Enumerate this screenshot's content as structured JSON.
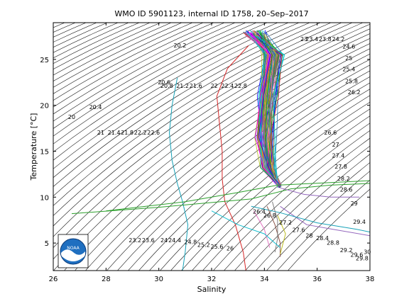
{
  "chart_data": {
    "type": "line",
    "title": "WMO ID 5901123, internal ID 1758, 20–Sep–2017",
    "xlabel": "Salinity",
    "ylabel": "Temperature [°C]",
    "xlim": [
      26,
      38
    ],
    "ylim": [
      2,
      29
    ],
    "xticks": [
      "26",
      "28",
      "30",
      "32",
      "34",
      "36",
      "38"
    ],
    "yticks": [
      "5",
      "10",
      "15",
      "20",
      "25"
    ],
    "grid": false,
    "isopycnal_labels": [
      {
        "text": "20",
        "s": 26.7,
        "t": 18.5
      },
      {
        "text": "20.4",
        "s": 27.6,
        "t": 19.6
      },
      {
        "text": "21",
        "s": 27.8,
        "t": 16.8
      },
      {
        "text": "21.4",
        "s": 28.3,
        "t": 16.8
      },
      {
        "text": "21.8",
        "s": 28.8,
        "t": 16.8
      },
      {
        "text": "22.2",
        "s": 29.3,
        "t": 16.8
      },
      {
        "text": "22.6",
        "s": 29.8,
        "t": 16.8
      },
      {
        "text": "20.6",
        "s": 30.2,
        "t": 22.3
      },
      {
        "text": "20.8",
        "s": 30.3,
        "t": 21.9
      },
      {
        "text": "21.2",
        "s": 30.9,
        "t": 21.9
      },
      {
        "text": "21.6",
        "s": 31.4,
        "t": 21.9
      },
      {
        "text": "22",
        "s": 32.1,
        "t": 21.9
      },
      {
        "text": "22.4",
        "s": 32.6,
        "t": 21.9
      },
      {
        "text": "22.8",
        "s": 33.1,
        "t": 21.9
      },
      {
        "text": "20.2",
        "s": 30.8,
        "t": 26.3
      },
      {
        "text": "23.2",
        "s": 29.1,
        "t": 5.1
      },
      {
        "text": "23.6",
        "s": 29.6,
        "t": 5.1
      },
      {
        "text": "24",
        "s": 30.2,
        "t": 5.1
      },
      {
        "text": "24.4",
        "s": 30.6,
        "t": 5.1
      },
      {
        "text": "24.8",
        "s": 31.2,
        "t": 4.9
      },
      {
        "text": "25.2",
        "s": 31.7,
        "t": 4.6
      },
      {
        "text": "25.6",
        "s": 32.2,
        "t": 4.4
      },
      {
        "text": "26",
        "s": 32.7,
        "t": 4.2
      },
      {
        "text": "26.4",
        "s": 33.8,
        "t": 8.2
      },
      {
        "text": "26.8",
        "s": 34.2,
        "t": 7.8
      },
      {
        "text": "27.2",
        "s": 34.8,
        "t": 7.0
      },
      {
        "text": "27.6",
        "s": 35.3,
        "t": 6.2
      },
      {
        "text": "28",
        "s": 35.7,
        "t": 5.6
      },
      {
        "text": "28.4",
        "s": 36.2,
        "t": 5.3
      },
      {
        "text": "28.8",
        "s": 36.6,
        "t": 4.8
      },
      {
        "text": "29.2",
        "s": 37.1,
        "t": 4.0
      },
      {
        "text": "29.6",
        "s": 37.5,
        "t": 3.5
      },
      {
        "text": "29.8",
        "s": 37.7,
        "t": 3.1
      },
      {
        "text": "30",
        "s": 37.9,
        "t": 3.8
      },
      {
        "text": "29.4",
        "s": 37.6,
        "t": 7.1
      },
      {
        "text": "29",
        "s": 37.4,
        "t": 9.1
      },
      {
        "text": "28.6",
        "s": 37.1,
        "t": 10.6
      },
      {
        "text": "28.2",
        "s": 37.0,
        "t": 11.8
      },
      {
        "text": "27.8",
        "s": 36.9,
        "t": 13.1
      },
      {
        "text": "27.4",
        "s": 36.8,
        "t": 14.3
      },
      {
        "text": "27",
        "s": 36.7,
        "t": 15.5
      },
      {
        "text": "26.6",
        "s": 36.5,
        "t": 16.8
      },
      {
        "text": "26.2",
        "s": 37.4,
        "t": 21.2
      },
      {
        "text": "25.8",
        "s": 37.3,
        "t": 22.4
      },
      {
        "text": "25.4",
        "s": 37.2,
        "t": 23.7
      },
      {
        "text": "25",
        "s": 37.2,
        "t": 24.9
      },
      {
        "text": "24.6",
        "s": 37.2,
        "t": 26.2
      },
      {
        "text": "23",
        "s": 35.5,
        "t": 27.0
      },
      {
        "text": "23.4",
        "s": 35.8,
        "t": 27.0
      },
      {
        "text": "23.8",
        "s": 36.3,
        "t": 27.0
      },
      {
        "text": "24.2",
        "s": 36.8,
        "t": 27.0
      }
    ],
    "series": [
      {
        "color": "#d62728",
        "values": [
          [
            33.4,
            26.5
          ],
          [
            32.6,
            24.0
          ],
          [
            32.2,
            21.0
          ],
          [
            32.3,
            18.0
          ],
          [
            32.4,
            15.0
          ],
          [
            32.4,
            12.0
          ],
          [
            32.5,
            9.5
          ],
          [
            32.9,
            7.0
          ],
          [
            33.2,
            4.0
          ],
          [
            33.3,
            2.0
          ]
        ]
      },
      {
        "color": "#17a2b8",
        "values": [
          [
            30.7,
            23.0
          ],
          [
            30.5,
            20.0
          ],
          [
            30.4,
            17.0
          ],
          [
            30.5,
            14.0
          ],
          [
            30.7,
            11.5
          ],
          [
            30.9,
            9.5
          ],
          [
            31.1,
            7.0
          ],
          [
            31.0,
            4.0
          ],
          [
            30.9,
            2.0
          ]
        ]
      },
      {
        "color": "#2ca02c",
        "values": [
          [
            26.7,
            8.2
          ],
          [
            30.0,
            8.9
          ],
          [
            33.5,
            9.8
          ],
          [
            35.0,
            10.9
          ],
          [
            36.5,
            11.3
          ],
          [
            38.0,
            11.5
          ]
        ]
      },
      {
        "color": "#2ca02c",
        "values": [
          [
            28.0,
            8.5
          ],
          [
            31.0,
            9.5
          ],
          [
            33.0,
            10.5
          ],
          [
            34.5,
            11.3
          ],
          [
            38.0,
            11.8
          ]
        ]
      },
      {
        "color": "#9467bd",
        "values": [
          [
            34.6,
            11.0
          ],
          [
            35.5,
            10.3
          ],
          [
            36.5,
            10.0
          ],
          [
            37.6,
            10.0
          ]
        ]
      },
      {
        "color": "#9467bd",
        "values": [
          [
            34.6,
            9.0
          ],
          [
            35.6,
            7.0
          ],
          [
            36.6,
            6.5
          ],
          [
            38.0,
            5.8
          ]
        ]
      },
      {
        "color": "#17a2b8",
        "values": [
          [
            33.5,
            9.0
          ],
          [
            34.6,
            8.3
          ],
          [
            36.0,
            7.2
          ],
          [
            37.5,
            6.5
          ],
          [
            38.0,
            6.2
          ]
        ]
      },
      {
        "color": "#8c564b",
        "values": [
          [
            34.1,
            9.0
          ],
          [
            34.4,
            7.0
          ],
          [
            34.6,
            5.0
          ],
          [
            34.6,
            3.5
          ]
        ]
      },
      {
        "color": "#7f7f7f",
        "values": [
          [
            34.3,
            9.5
          ],
          [
            34.5,
            7.5
          ],
          [
            34.5,
            5.5
          ],
          [
            34.4,
            4.0
          ]
        ]
      },
      {
        "color": "#e377c2",
        "values": [
          [
            33.6,
            8.5
          ],
          [
            34.0,
            6.5
          ],
          [
            34.2,
            4.5
          ]
        ]
      },
      {
        "color": "#bcbd22",
        "values": [
          [
            34.5,
            8.0
          ],
          [
            34.8,
            6.0
          ],
          [
            34.6,
            3.8
          ]
        ]
      },
      {
        "color": "#17becf",
        "values": [
          [
            32.0,
            8.5
          ],
          [
            33.0,
            7.0
          ],
          [
            34.0,
            6.0
          ],
          [
            34.6,
            4.5
          ]
        ]
      }
    ]
  },
  "logo": {
    "text": "NOAA"
  }
}
